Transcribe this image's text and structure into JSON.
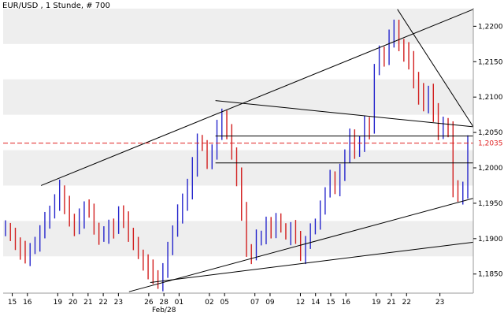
{
  "chart_data": {
    "type": "candlestick",
    "title": "EUR/USD , 1 Stunde, # 700",
    "xlabel": "",
    "ylabel": "",
    "ylim": [
      1.1823,
      1.2226
    ],
    "y_ticks": [
      "1,2200",
      "1,2150",
      "1,2100",
      "1,2050",
      "1,2000",
      "1,1950",
      "1,1900",
      "1,1850"
    ],
    "y_tick_values": [
      1.22,
      1.215,
      1.21,
      1.205,
      1.2,
      1.195,
      1.19,
      1.185
    ],
    "x_ticks": [
      "15",
      "16",
      "19",
      "20",
      "21",
      "22",
      "23",
      "26",
      "28",
      "01",
      "02",
      "05",
      "07",
      "09",
      "12",
      "14",
      "15",
      "16",
      "19",
      "21",
      "22",
      "23"
    ],
    "x_sublabel": "Feb/28",
    "current_price_label": "1,2035",
    "current_price": 1.2035,
    "grid": "horizontal-bands",
    "series": [
      {
        "values": [
          1.1915,
          1.1905,
          1.1895,
          1.1885,
          1.1875,
          1.1885,
          1.189,
          1.1908,
          1.1925,
          1.1935,
          1.1955,
          1.1968,
          1.1945,
          1.1925,
          1.1915,
          1.193,
          1.1945,
          1.1938,
          1.1915,
          1.1905,
          1.1908,
          1.192,
          1.1915,
          1.1935,
          1.1925,
          1.1908,
          1.1892,
          1.1878,
          1.1865,
          1.1855,
          1.1845,
          1.184,
          1.1855,
          1.1885,
          1.191,
          1.1935,
          1.1955,
          1.197,
          1.2,
          1.2035,
          1.203,
          1.2008,
          1.2025,
          1.2055,
          1.2075,
          1.205,
          1.2022,
          1.199,
          1.194,
          1.1885,
          1.1878,
          1.1898,
          1.1905,
          1.1918,
          1.1915,
          1.1928,
          1.1915,
          1.1905,
          1.1912,
          1.19,
          1.1875,
          1.1895,
          1.1915,
          1.192,
          1.194,
          1.1965,
          1.1985,
          1.197,
          1.1995,
          1.202,
          1.2045,
          1.2028,
          1.2032,
          1.2065,
          1.2055,
          1.214,
          1.2165,
          1.2155,
          1.2185,
          1.2198,
          1.2175,
          1.2165,
          1.215,
          1.2125,
          1.2105,
          1.209,
          1.2105,
          1.208,
          1.2055,
          1.206,
          1.205,
          1.197,
          1.1962,
          1.1967,
          1.2035
        ]
      }
    ],
    "lines": [
      {
        "kind": "resistance",
        "from": [
          2,
          1.1975
        ],
        "to": [
          30.5,
          1.2224
        ]
      },
      {
        "kind": "resistance",
        "from": [
          13.5,
          1.2095
        ],
        "to": [
          31,
          1.2058
        ]
      },
      {
        "kind": "resistance",
        "from": [
          25.5,
          1.2224
        ],
        "to": [
          31,
          1.2058
        ]
      },
      {
        "kind": "support",
        "from": [
          7.8,
          1.1825
        ],
        "to": [
          31,
          1.1957
        ]
      },
      {
        "kind": "support",
        "from": [
          9.2,
          1.1838
        ],
        "to": [
          31,
          1.1895
        ]
      },
      {
        "kind": "level",
        "from": [
          13.5,
          1.2045
        ],
        "to": [
          31,
          1.2045
        ]
      },
      {
        "kind": "level",
        "from": [
          13.5,
          1.2007
        ],
        "to": [
          31,
          1.2007
        ]
      }
    ],
    "colors": {
      "candle_up": "#2626cc",
      "candle_down": "#d21e1e",
      "trendline": "#000000",
      "current_price_line": "#e02020",
      "band": "#eeeeee"
    }
  }
}
